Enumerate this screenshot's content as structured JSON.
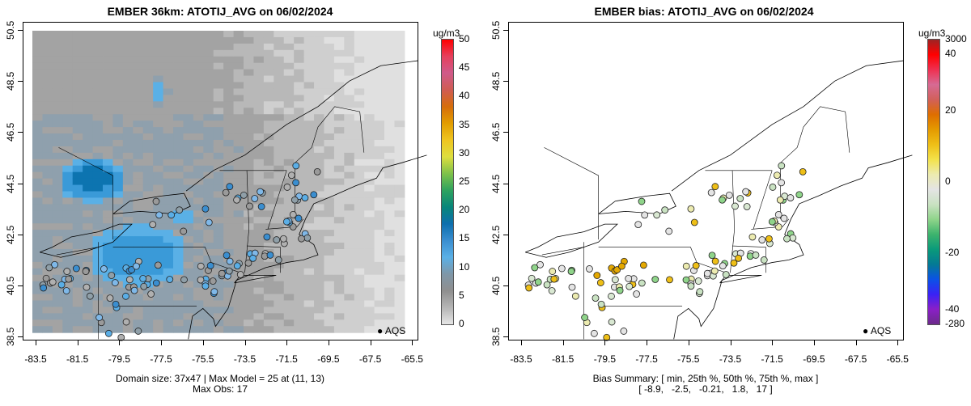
{
  "left": {
    "title": "EMBER 36km: ATOTIJ_AVG on 06/02/2024",
    "unit": "ug/m3",
    "colorbar_ticks": [
      "50",
      "45",
      "40",
      "35",
      "30",
      "25",
      "20",
      "15",
      "10",
      "5",
      "0"
    ],
    "caption1": "Domain size: 37x47 | Max Model = 25 at (11, 13)",
    "caption2": "Max Obs: 17",
    "legend": "AQS"
  },
  "right": {
    "title": "EMBER bias: ATOTIJ_AVG on 06/02/2024",
    "unit": "ug/m3",
    "colorbar_ticks": [
      "3000",
      "40",
      "20",
      "0",
      "-20",
      "-40",
      "-280"
    ],
    "caption1": "Bias Summary: [ min, 25th %, 50th %, 75th %, max ]",
    "caption2": "[ -8.9,   -2.5,   -0.21,   1.8,   17 ]",
    "legend": "AQS"
  },
  "x_ticks": [
    "-83.5",
    "-81.5",
    "-79.5",
    "-77.5",
    "-75.5",
    "-73.5",
    "-71.5",
    "-69.5",
    "-67.5",
    "-65.5"
  ],
  "y_ticks": [
    "50.5",
    "48.5",
    "46.5",
    "44.5",
    "42.5",
    "40.5",
    "38.5"
  ],
  "colors": {
    "conc": [
      "#e6e6e6",
      "#b5b5b5",
      "#8f8f8f",
      "#7f97a8",
      "#5ab0e6",
      "#3a8ed0",
      "#0d6fae",
      "#08867a",
      "#2ea35f",
      "#7fc24a",
      "#dede3f",
      "#efc51f",
      "#e29d00",
      "#d66d0a",
      "#d05c52",
      "#cf5a8a",
      "#e6405c",
      "#ff0000"
    ],
    "bias": [
      "#6c2a8a",
      "#8a1fc7",
      "#3a22f5",
      "#0b52e6",
      "#047a94",
      "#0a9a7a",
      "#3db36d",
      "#8fd48a",
      "#c9e2c2",
      "#e4e4e4",
      "#ecebb0",
      "#f3e24a",
      "#eebf17",
      "#e49a00",
      "#de6e00",
      "#d2605a",
      "#d66a94",
      "#ef3050",
      "#ff0000",
      "#9c2424"
    ]
  }
}
